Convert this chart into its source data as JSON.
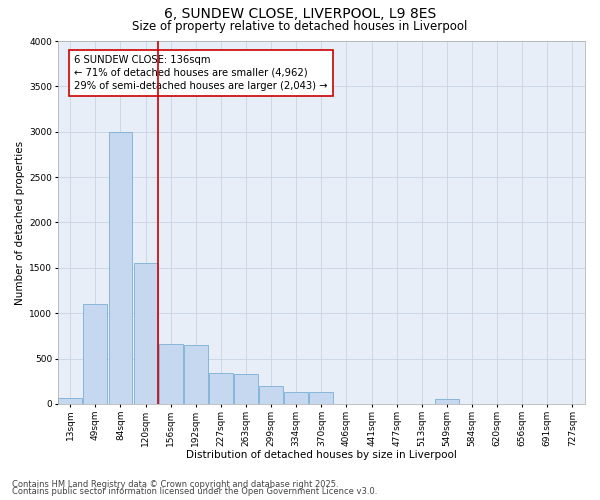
{
  "title_line1": "6, SUNDEW CLOSE, LIVERPOOL, L9 8ES",
  "title_line2": "Size of property relative to detached houses in Liverpool",
  "xlabel": "Distribution of detached houses by size in Liverpool",
  "ylabel": "Number of detached properties",
  "categories": [
    "13sqm",
    "49sqm",
    "84sqm",
    "120sqm",
    "156sqm",
    "192sqm",
    "227sqm",
    "263sqm",
    "299sqm",
    "334sqm",
    "370sqm",
    "406sqm",
    "441sqm",
    "477sqm",
    "513sqm",
    "549sqm",
    "584sqm",
    "620sqm",
    "656sqm",
    "691sqm",
    "727sqm"
  ],
  "values": [
    60,
    1100,
    3000,
    1550,
    660,
    650,
    340,
    330,
    195,
    130,
    130,
    0,
    0,
    0,
    0,
    50,
    0,
    0,
    0,
    0,
    0
  ],
  "bar_color": "#c5d8f0",
  "bar_edge_color": "#7bafd4",
  "vline_x_idx": 3,
  "vline_color": "#cc0000",
  "annotation_text": "6 SUNDEW CLOSE: 136sqm\n← 71% of detached houses are smaller (4,962)\n29% of semi-detached houses are larger (2,043) →",
  "annotation_box_color": "#ffffff",
  "annotation_box_edge": "#cc0000",
  "ylim": [
    0,
    4000
  ],
  "yticks": [
    0,
    500,
    1000,
    1500,
    2000,
    2500,
    3000,
    3500,
    4000
  ],
  "grid_color": "#c8d4e3",
  "background_color": "#e8eef7",
  "footer_line1": "Contains HM Land Registry data © Crown copyright and database right 2025.",
  "footer_line2": "Contains public sector information licensed under the Open Government Licence v3.0.",
  "title_fontsize": 10,
  "subtitle_fontsize": 8.5,
  "axis_label_fontsize": 7.5,
  "tick_fontsize": 6.5,
  "footer_fontsize": 6,
  "annotation_fontsize": 7.2
}
